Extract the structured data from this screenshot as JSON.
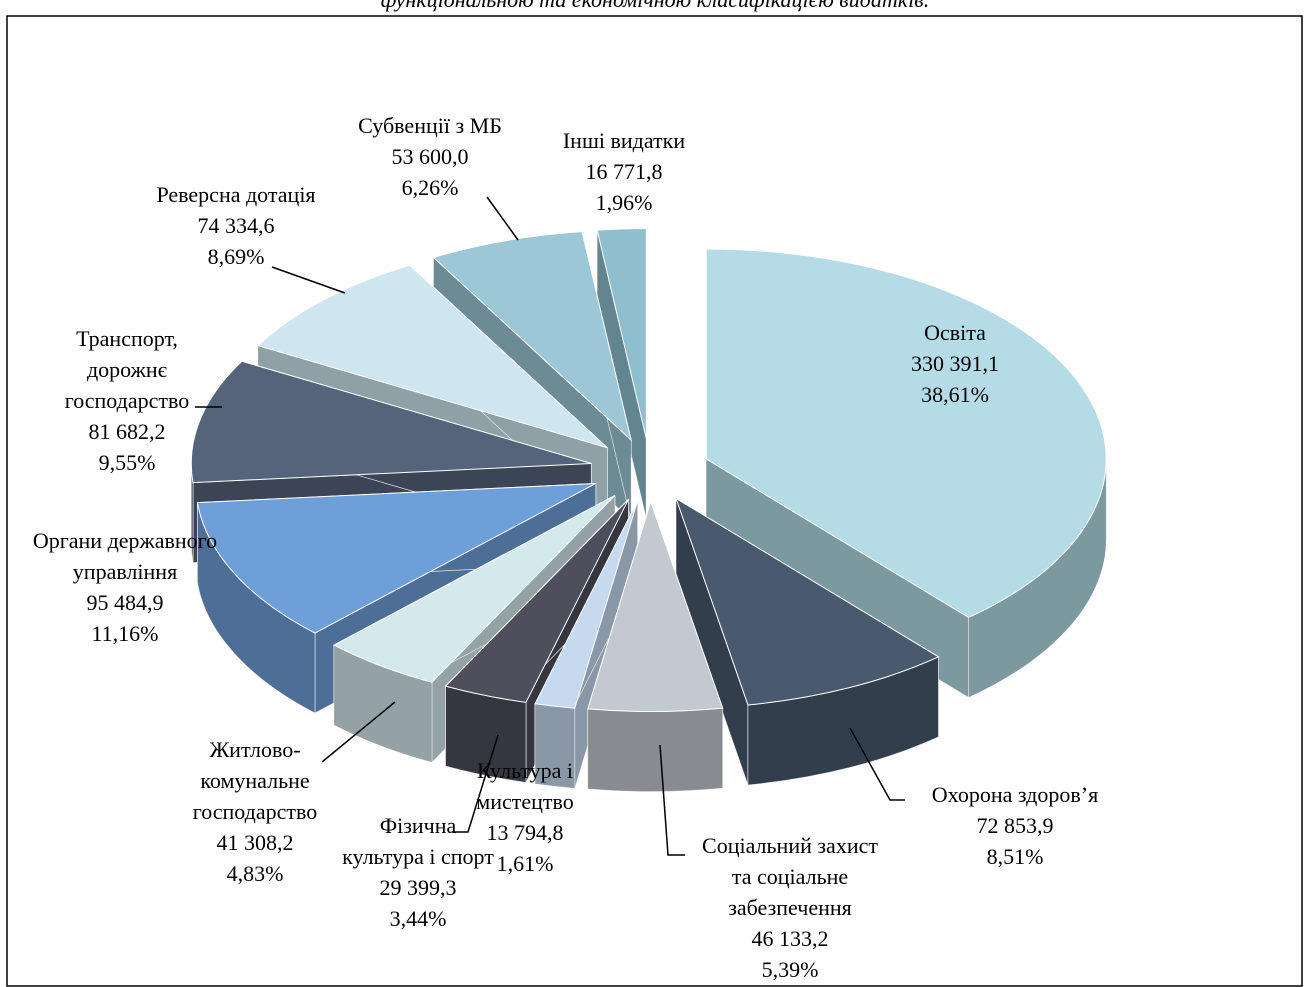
{
  "chart_data": {
    "type": "pie",
    "title": "функціональною та економічною класифікацією видатків.",
    "categories": [
      [
        "Освіта"
      ],
      [
        "Охорона здоров’я"
      ],
      [
        "Соціальний захист",
        "та соціальне",
        "забезпечення"
      ],
      [
        "Культура і",
        "мистецтво"
      ],
      [
        "Фізична",
        "культура і спорт"
      ],
      [
        "Житлово-",
        "комунальне",
        "господарство"
      ],
      [
        "Органи державного",
        "управління"
      ],
      [
        "Транспорт,",
        "дорожнє",
        "господарство"
      ],
      [
        "Реверсна дотація"
      ],
      [
        "Субвенції з МБ"
      ],
      [
        "Інші видатки"
      ]
    ],
    "values": [
      330391.1,
      72853.9,
      46133.2,
      13794.8,
      29399.3,
      41308.2,
      95484.9,
      81682.2,
      74334.6,
      53600.0,
      16771.8
    ],
    "value_labels": [
      "330 391,1",
      "72 853,9",
      "46 133,2",
      "13 794,8",
      "29 399,3",
      "41 308,2",
      "95 484,9",
      "81 682,2",
      "74 334,6",
      "53 600,0",
      "16 771,8"
    ],
    "percentages": [
      38.61,
      8.51,
      5.39,
      1.61,
      3.44,
      4.83,
      11.16,
      9.55,
      8.69,
      6.26,
      1.96
    ],
    "percentage_labels": [
      "38,61%",
      "8,51%",
      "5,39%",
      "1,61%",
      "3,44%",
      "4,83%",
      "11,16%",
      "9,55%",
      "8,69%",
      "6,26%",
      "1,96%"
    ],
    "colors": [
      "#b4dbe6",
      "#4a5a6e",
      "#c3c9ce",
      "#c6d9ef",
      "#4e4e5c",
      "#d4e9ec",
      "#6f9fd8",
      "#55647a",
      "#cfe6f0",
      "#9cc7d6",
      "#8fbfcf"
    ]
  }
}
